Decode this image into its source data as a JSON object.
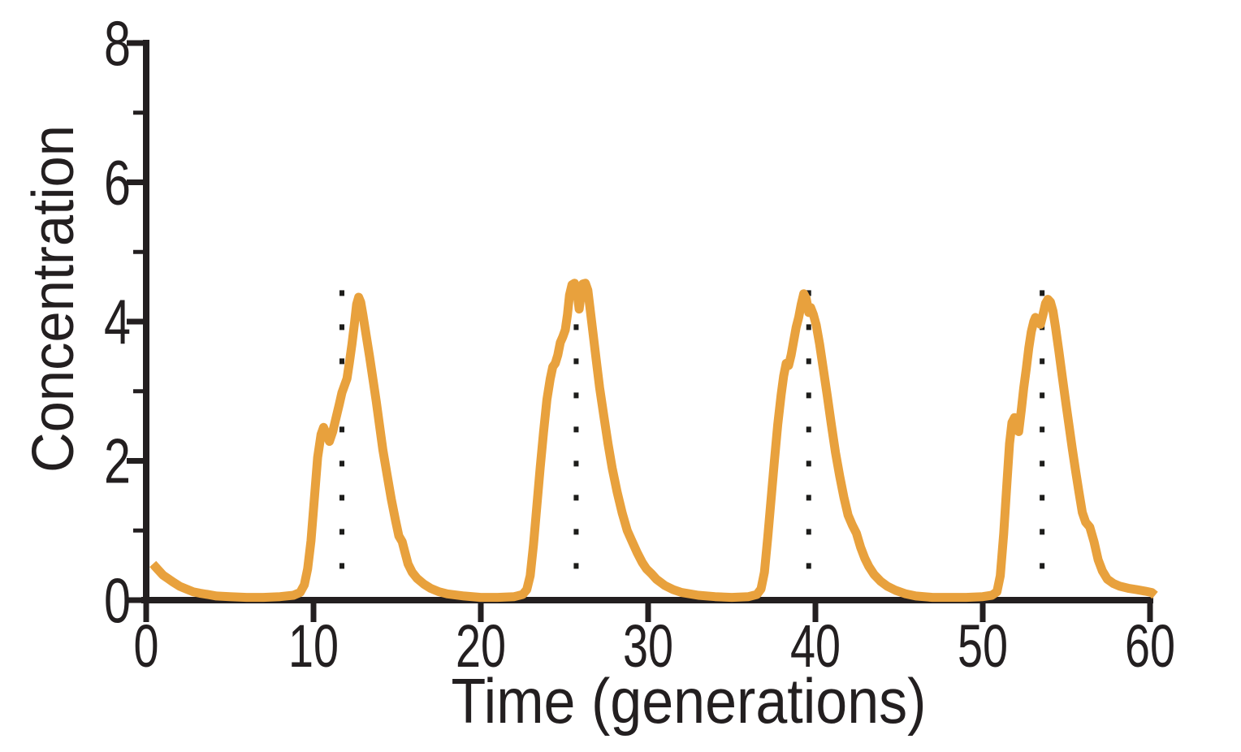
{
  "figure": {
    "background": "#FFFFFF"
  },
  "chart_data": {
    "type": "line",
    "title": "",
    "xlabel": "Time (generations)",
    "ylabel": "Concentration",
    "xlim": [
      0,
      60
    ],
    "ylim": [
      0,
      8
    ],
    "grid": false,
    "legend": false,
    "axis_color": "#231F20",
    "x_ticks": {
      "major": [
        0,
        10,
        20,
        30,
        40,
        50,
        60
      ],
      "minor": []
    },
    "y_ticks": {
      "major": [
        0,
        2,
        4,
        6,
        8
      ],
      "minor": [
        1,
        3,
        5,
        7
      ]
    },
    "guides": {
      "style": "dotted",
      "color": "#1D1D1B",
      "x": [
        11.7,
        25.7,
        39.6,
        53.55
      ],
      "y_from": 0.06,
      "y_to": 4.45
    },
    "series": [
      {
        "name": "Concentration",
        "color": "#E8A13D",
        "stroke_width": 11,
        "points": [
          [
            0.4,
            0.52
          ],
          [
            0.7,
            0.44
          ],
          [
            1.0,
            0.36
          ],
          [
            1.3,
            0.31
          ],
          [
            1.6,
            0.26
          ],
          [
            2.0,
            0.2
          ],
          [
            2.4,
            0.16
          ],
          [
            2.8,
            0.12
          ],
          [
            3.2,
            0.1
          ],
          [
            3.7,
            0.08
          ],
          [
            4.2,
            0.06
          ],
          [
            5.0,
            0.05
          ],
          [
            6.0,
            0.04
          ],
          [
            7.0,
            0.04
          ],
          [
            8.0,
            0.05
          ],
          [
            8.8,
            0.07
          ],
          [
            9.2,
            0.11
          ],
          [
            9.45,
            0.22
          ],
          [
            9.65,
            0.45
          ],
          [
            9.85,
            0.85
          ],
          [
            10.05,
            1.45
          ],
          [
            10.25,
            2.05
          ],
          [
            10.45,
            2.38
          ],
          [
            10.6,
            2.48
          ],
          [
            10.75,
            2.4
          ],
          [
            10.95,
            2.28
          ],
          [
            11.15,
            2.42
          ],
          [
            11.35,
            2.62
          ],
          [
            11.55,
            2.82
          ],
          [
            11.7,
            2.98
          ],
          [
            11.85,
            3.08
          ],
          [
            12.0,
            3.18
          ],
          [
            12.15,
            3.42
          ],
          [
            12.3,
            3.68
          ],
          [
            12.45,
            3.98
          ],
          [
            12.58,
            4.25
          ],
          [
            12.7,
            4.35
          ],
          [
            12.82,
            4.28
          ],
          [
            12.95,
            4.1
          ],
          [
            13.15,
            3.8
          ],
          [
            13.35,
            3.5
          ],
          [
            13.55,
            3.18
          ],
          [
            13.75,
            2.85
          ],
          [
            13.95,
            2.5
          ],
          [
            14.15,
            2.15
          ],
          [
            14.4,
            1.8
          ],
          [
            14.65,
            1.45
          ],
          [
            14.9,
            1.15
          ],
          [
            15.1,
            0.92
          ],
          [
            15.3,
            0.84
          ],
          [
            15.45,
            0.7
          ],
          [
            15.65,
            0.52
          ],
          [
            15.9,
            0.4
          ],
          [
            16.2,
            0.31
          ],
          [
            16.6,
            0.23
          ],
          [
            17.0,
            0.17
          ],
          [
            17.5,
            0.12
          ],
          [
            18.0,
            0.09
          ],
          [
            19.0,
            0.06
          ],
          [
            20.0,
            0.04
          ],
          [
            21.0,
            0.04
          ],
          [
            22.0,
            0.05
          ],
          [
            22.5,
            0.08
          ],
          [
            22.75,
            0.15
          ],
          [
            22.95,
            0.35
          ],
          [
            23.15,
            0.8
          ],
          [
            23.35,
            1.35
          ],
          [
            23.55,
            1.9
          ],
          [
            23.75,
            2.42
          ],
          [
            23.95,
            2.88
          ],
          [
            24.15,
            3.18
          ],
          [
            24.3,
            3.35
          ],
          [
            24.45,
            3.4
          ],
          [
            24.6,
            3.52
          ],
          [
            24.75,
            3.7
          ],
          [
            24.9,
            3.78
          ],
          [
            25.05,
            3.88
          ],
          [
            25.18,
            4.1
          ],
          [
            25.3,
            4.38
          ],
          [
            25.45,
            4.53
          ],
          [
            25.6,
            4.55
          ],
          [
            25.75,
            4.42
          ],
          [
            25.88,
            4.18
          ],
          [
            26.0,
            4.4
          ],
          [
            26.1,
            4.54
          ],
          [
            26.25,
            4.55
          ],
          [
            26.4,
            4.45
          ],
          [
            26.55,
            4.15
          ],
          [
            26.7,
            3.85
          ],
          [
            26.9,
            3.45
          ],
          [
            27.1,
            3.05
          ],
          [
            27.35,
            2.65
          ],
          [
            27.6,
            2.25
          ],
          [
            27.85,
            1.9
          ],
          [
            28.15,
            1.55
          ],
          [
            28.45,
            1.25
          ],
          [
            28.75,
            1.0
          ],
          [
            29.05,
            0.84
          ],
          [
            29.35,
            0.68
          ],
          [
            29.65,
            0.54
          ],
          [
            29.9,
            0.45
          ],
          [
            30.2,
            0.38
          ],
          [
            30.5,
            0.3
          ],
          [
            31.0,
            0.21
          ],
          [
            31.5,
            0.15
          ],
          [
            32.0,
            0.11
          ],
          [
            33.0,
            0.07
          ],
          [
            34.0,
            0.05
          ],
          [
            35.0,
            0.04
          ],
          [
            36.0,
            0.05
          ],
          [
            36.5,
            0.08
          ],
          [
            36.75,
            0.16
          ],
          [
            36.95,
            0.4
          ],
          [
            37.15,
            0.9
          ],
          [
            37.35,
            1.45
          ],
          [
            37.55,
            2.0
          ],
          [
            37.75,
            2.52
          ],
          [
            37.95,
            2.95
          ],
          [
            38.1,
            3.22
          ],
          [
            38.25,
            3.4
          ],
          [
            38.4,
            3.37
          ],
          [
            38.55,
            3.52
          ],
          [
            38.7,
            3.72
          ],
          [
            38.85,
            3.92
          ],
          [
            39.0,
            4.06
          ],
          [
            39.15,
            4.25
          ],
          [
            39.3,
            4.4
          ],
          [
            39.45,
            4.33
          ],
          [
            39.6,
            4.13
          ],
          [
            39.72,
            4.2
          ],
          [
            39.88,
            4.1
          ],
          [
            40.05,
            3.95
          ],
          [
            40.25,
            3.68
          ],
          [
            40.45,
            3.35
          ],
          [
            40.7,
            2.95
          ],
          [
            40.95,
            2.52
          ],
          [
            41.2,
            2.12
          ],
          [
            41.45,
            1.78
          ],
          [
            41.7,
            1.48
          ],
          [
            41.95,
            1.22
          ],
          [
            42.2,
            1.08
          ],
          [
            42.45,
            0.96
          ],
          [
            42.7,
            0.76
          ],
          [
            42.95,
            0.6
          ],
          [
            43.2,
            0.48
          ],
          [
            43.5,
            0.37
          ],
          [
            43.9,
            0.27
          ],
          [
            44.3,
            0.2
          ],
          [
            44.8,
            0.14
          ],
          [
            45.4,
            0.09
          ],
          [
            46.0,
            0.06
          ],
          [
            47.0,
            0.04
          ],
          [
            48.0,
            0.04
          ],
          [
            49.0,
            0.04
          ],
          [
            50.0,
            0.05
          ],
          [
            50.55,
            0.07
          ],
          [
            50.85,
            0.12
          ],
          [
            51.05,
            0.35
          ],
          [
            51.25,
            0.95
          ],
          [
            51.45,
            1.7
          ],
          [
            51.6,
            2.25
          ],
          [
            51.75,
            2.55
          ],
          [
            51.9,
            2.62
          ],
          [
            52.05,
            2.48
          ],
          [
            52.15,
            2.42
          ],
          [
            52.3,
            2.72
          ],
          [
            52.45,
            3.05
          ],
          [
            52.6,
            3.32
          ],
          [
            52.75,
            3.62
          ],
          [
            52.9,
            3.85
          ],
          [
            53.05,
            4.0
          ],
          [
            53.15,
            4.06
          ],
          [
            53.3,
            4.0
          ],
          [
            53.45,
            3.96
          ],
          [
            53.6,
            4.1
          ],
          [
            53.75,
            4.26
          ],
          [
            53.9,
            4.32
          ],
          [
            54.05,
            4.28
          ],
          [
            54.2,
            4.15
          ],
          [
            54.35,
            3.92
          ],
          [
            54.55,
            3.58
          ],
          [
            54.75,
            3.22
          ],
          [
            54.95,
            2.86
          ],
          [
            55.15,
            2.52
          ],
          [
            55.35,
            2.18
          ],
          [
            55.55,
            1.86
          ],
          [
            55.75,
            1.55
          ],
          [
            55.95,
            1.26
          ],
          [
            56.15,
            1.12
          ],
          [
            56.4,
            1.05
          ],
          [
            56.65,
            0.84
          ],
          [
            56.9,
            0.58
          ],
          [
            57.15,
            0.42
          ],
          [
            57.45,
            0.3
          ],
          [
            57.8,
            0.24
          ],
          [
            58.2,
            0.2
          ],
          [
            58.7,
            0.17
          ],
          [
            59.2,
            0.15
          ],
          [
            59.7,
            0.13
          ],
          [
            60.1,
            0.11
          ],
          [
            60.3,
            0.07
          ]
        ]
      }
    ]
  }
}
